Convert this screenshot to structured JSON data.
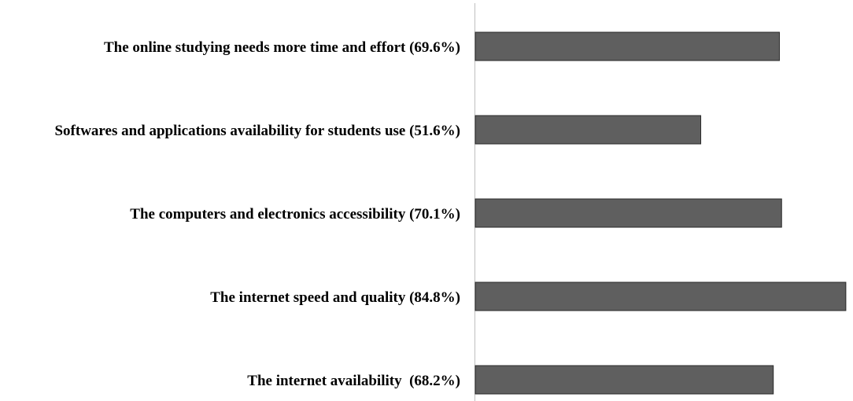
{
  "chart_data": {
    "type": "bar",
    "orientation": "horizontal",
    "categories": [
      "The online studying needs more time and effort (69.6%)",
      "Softwares and applications availability for students use (51.6%)",
      "The computers and electronics accessibility (70.1%)",
      "The internet speed and quality (84.8%)",
      "The internet availability  (68.2%)"
    ],
    "values": [
      69.6,
      51.6,
      70.1,
      84.8,
      68.2
    ],
    "title": "",
    "xlabel": "",
    "ylabel": "",
    "xlim": [
      0,
      85
    ],
    "grid": false,
    "legend": "none",
    "bar_color": "#5f5f5f"
  }
}
